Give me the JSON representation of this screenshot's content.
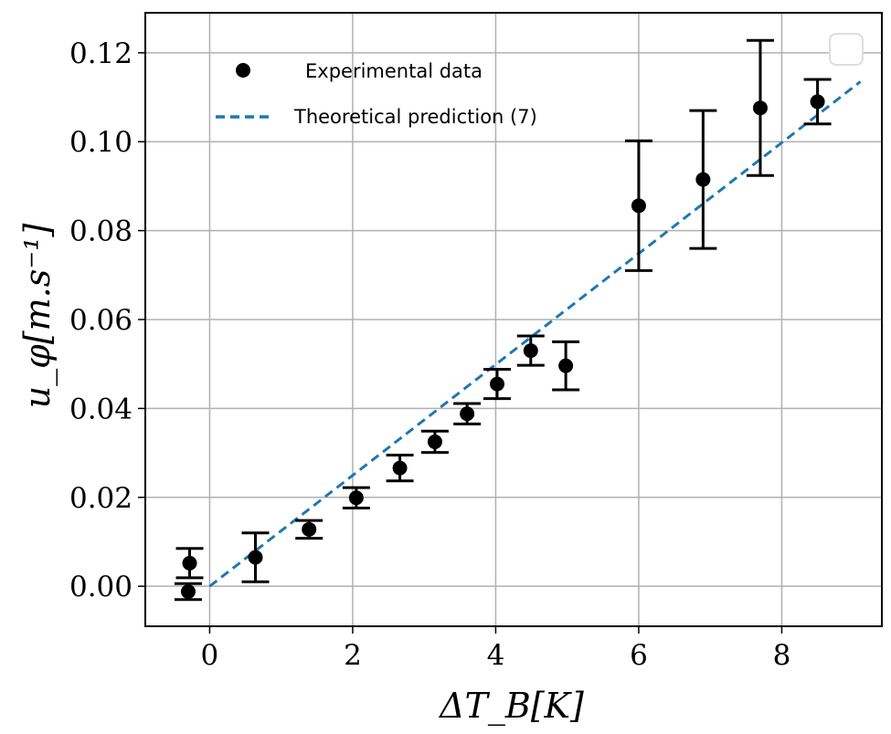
{
  "chart_data": {
    "type": "scatter",
    "xlabel": "ΔT_B[K]",
    "ylabel": "u_φ[m.s⁻¹]",
    "xlim": [
      -0.9,
      9.4
    ],
    "ylim": [
      -0.009,
      0.129
    ],
    "x_ticks": [
      0,
      2,
      4,
      6,
      8
    ],
    "x_tick_labels": [
      "0",
      "2",
      "4",
      "6",
      "8"
    ],
    "y_ticks": [
      0.0,
      0.02,
      0.04,
      0.06,
      0.08,
      0.1,
      0.12
    ],
    "y_tick_labels": [
      "0.00",
      "0.02",
      "0.04",
      "0.06",
      "0.08",
      "0.10",
      "0.12"
    ],
    "grid": true,
    "legend_placement": "upper-left",
    "series": [
      {
        "name": "Experimental data",
        "kind": "errorbar",
        "color": "#000000",
        "points": [
          {
            "x": -0.28,
            "y": 0.0052,
            "err": 0.0033
          },
          {
            "x": -0.3,
            "y": -0.0012,
            "err": 0.0018
          },
          {
            "x": 0.64,
            "y": 0.0065,
            "err": 0.0055
          },
          {
            "x": 1.39,
            "y": 0.0128,
            "err": 0.002
          },
          {
            "x": 2.05,
            "y": 0.0199,
            "err": 0.0023
          },
          {
            "x": 2.66,
            "y": 0.0266,
            "err": 0.0029
          },
          {
            "x": 3.15,
            "y": 0.0325,
            "err": 0.0024
          },
          {
            "x": 3.6,
            "y": 0.0388,
            "err": 0.0023
          },
          {
            "x": 4.02,
            "y": 0.0455,
            "err": 0.0033
          },
          {
            "x": 4.49,
            "y": 0.053,
            "err": 0.0033
          },
          {
            "x": 4.98,
            "y": 0.0496,
            "err": 0.0054
          },
          {
            "x": 6.0,
            "y": 0.0856,
            "err": 0.0146
          },
          {
            "x": 6.9,
            "y": 0.0915,
            "err": 0.0155
          },
          {
            "x": 7.7,
            "y": 0.1076,
            "err": 0.0152
          },
          {
            "x": 8.5,
            "y": 0.109,
            "err": 0.005
          }
        ]
      },
      {
        "name": "Theoretical prediction (7)",
        "kind": "line",
        "style": "dashed",
        "color": "#1f77b4",
        "x": [
          0.0,
          9.1
        ],
        "y": [
          0.0,
          0.1135
        ]
      }
    ]
  }
}
